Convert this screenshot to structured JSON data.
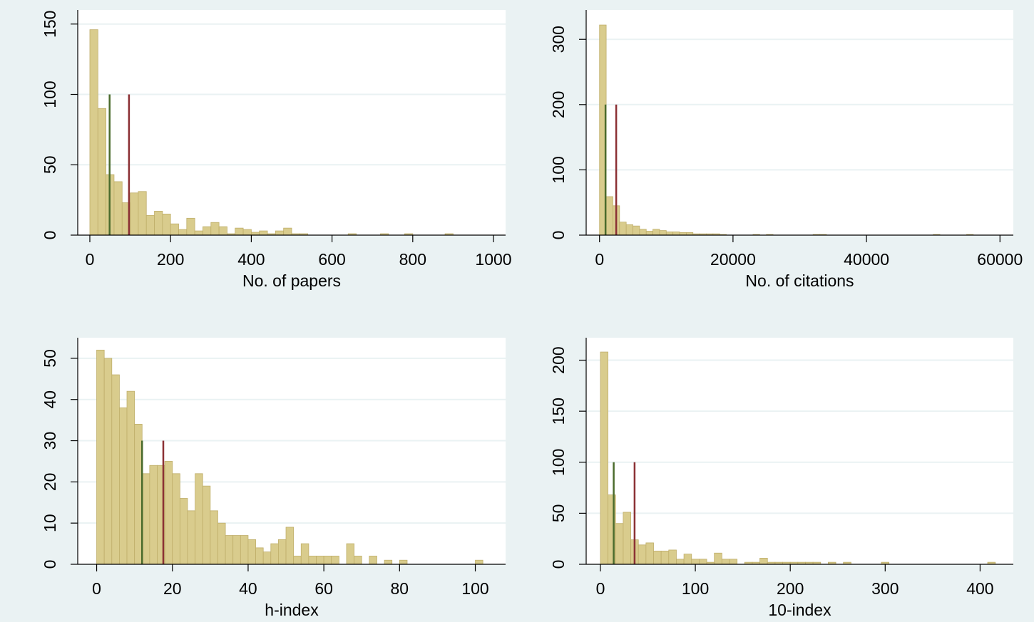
{
  "chart_data": [
    {
      "type": "bar",
      "xlabel": "No. of papers",
      "ylabel": "",
      "xlim": [
        -30,
        1030
      ],
      "ylim": [
        0,
        160
      ],
      "xticks": [
        0,
        200,
        400,
        600,
        800,
        1000
      ],
      "yticks": [
        0,
        50,
        100,
        150
      ],
      "bin_width": 20,
      "bins": [
        {
          "x0": 0,
          "count": 146
        },
        {
          "x0": 20,
          "count": 90
        },
        {
          "x0": 40,
          "count": 43
        },
        {
          "x0": 60,
          "count": 38
        },
        {
          "x0": 80,
          "count": 23
        },
        {
          "x0": 100,
          "count": 30
        },
        {
          "x0": 120,
          "count": 31
        },
        {
          "x0": 140,
          "count": 14
        },
        {
          "x0": 160,
          "count": 17
        },
        {
          "x0": 180,
          "count": 15
        },
        {
          "x0": 200,
          "count": 8
        },
        {
          "x0": 220,
          "count": 4
        },
        {
          "x0": 240,
          "count": 12
        },
        {
          "x0": 260,
          "count": 3
        },
        {
          "x0": 280,
          "count": 6
        },
        {
          "x0": 300,
          "count": 9
        },
        {
          "x0": 320,
          "count": 6
        },
        {
          "x0": 340,
          "count": 1
        },
        {
          "x0": 360,
          "count": 5
        },
        {
          "x0": 380,
          "count": 4
        },
        {
          "x0": 400,
          "count": 2
        },
        {
          "x0": 420,
          "count": 3
        },
        {
          "x0": 440,
          "count": 1
        },
        {
          "x0": 460,
          "count": 3
        },
        {
          "x0": 480,
          "count": 5
        },
        {
          "x0": 500,
          "count": 1
        },
        {
          "x0": 520,
          "count": 1
        },
        {
          "x0": 640,
          "count": 1
        },
        {
          "x0": 720,
          "count": 1
        },
        {
          "x0": 780,
          "count": 1
        },
        {
          "x0": 880,
          "count": 1
        }
      ],
      "reference_lines": [
        {
          "x": 49,
          "height": 100,
          "color": "#4a6b2c"
        },
        {
          "x": 97,
          "height": 100,
          "color": "#8b3034"
        }
      ]
    },
    {
      "type": "bar",
      "xlabel": "No. of citations",
      "ylabel": "",
      "xlim": [
        -2000,
        62000
      ],
      "ylim": [
        0,
        345
      ],
      "xticks": [
        0,
        20000,
        40000,
        60000
      ],
      "yticks": [
        0,
        100,
        200,
        300
      ],
      "bin_width": 1000,
      "bins": [
        {
          "x0": 0,
          "count": 322
        },
        {
          "x0": 1000,
          "count": 59
        },
        {
          "x0": 2000,
          "count": 45
        },
        {
          "x0": 3000,
          "count": 20
        },
        {
          "x0": 4000,
          "count": 16
        },
        {
          "x0": 5000,
          "count": 14
        },
        {
          "x0": 6000,
          "count": 9
        },
        {
          "x0": 7000,
          "count": 6
        },
        {
          "x0": 8000,
          "count": 9
        },
        {
          "x0": 9000,
          "count": 7
        },
        {
          "x0": 10000,
          "count": 5
        },
        {
          "x0": 11000,
          "count": 5
        },
        {
          "x0": 12000,
          "count": 4
        },
        {
          "x0": 13000,
          "count": 4
        },
        {
          "x0": 14000,
          "count": 2
        },
        {
          "x0": 15000,
          "count": 2
        },
        {
          "x0": 16000,
          "count": 2
        },
        {
          "x0": 17000,
          "count": 2
        },
        {
          "x0": 18000,
          "count": 1
        },
        {
          "x0": 23000,
          "count": 1
        },
        {
          "x0": 25000,
          "count": 1
        },
        {
          "x0": 32000,
          "count": 1
        },
        {
          "x0": 33000,
          "count": 1
        },
        {
          "x0": 50000,
          "count": 1
        },
        {
          "x0": 55000,
          "count": 1
        }
      ],
      "reference_lines": [
        {
          "x": 900,
          "height": 200,
          "color": "#4a6b2c"
        },
        {
          "x": 2500,
          "height": 200,
          "color": "#8b3034"
        }
      ]
    },
    {
      "type": "bar",
      "xlabel": "h-index",
      "ylabel": "",
      "xlim": [
        -5,
        108
      ],
      "ylim": [
        0,
        55
      ],
      "xticks": [
        0,
        20,
        40,
        60,
        80,
        100
      ],
      "yticks": [
        0,
        10,
        20,
        30,
        40,
        50
      ],
      "bin_width": 2,
      "bins": [
        {
          "x0": 0,
          "count": 52
        },
        {
          "x0": 2,
          "count": 50
        },
        {
          "x0": 4,
          "count": 46
        },
        {
          "x0": 6,
          "count": 38
        },
        {
          "x0": 8,
          "count": 42
        },
        {
          "x0": 10,
          "count": 34
        },
        {
          "x0": 12,
          "count": 22
        },
        {
          "x0": 14,
          "count": 24
        },
        {
          "x0": 16,
          "count": 24
        },
        {
          "x0": 18,
          "count": 25
        },
        {
          "x0": 20,
          "count": 22
        },
        {
          "x0": 22,
          "count": 16
        },
        {
          "x0": 24,
          "count": 13
        },
        {
          "x0": 26,
          "count": 22
        },
        {
          "x0": 28,
          "count": 19
        },
        {
          "x0": 30,
          "count": 13
        },
        {
          "x0": 32,
          "count": 10
        },
        {
          "x0": 34,
          "count": 7
        },
        {
          "x0": 36,
          "count": 7
        },
        {
          "x0": 38,
          "count": 7
        },
        {
          "x0": 40,
          "count": 6
        },
        {
          "x0": 42,
          "count": 4
        },
        {
          "x0": 44,
          "count": 3
        },
        {
          "x0": 46,
          "count": 5
        },
        {
          "x0": 48,
          "count": 6
        },
        {
          "x0": 50,
          "count": 9
        },
        {
          "x0": 52,
          "count": 2
        },
        {
          "x0": 54,
          "count": 5
        },
        {
          "x0": 56,
          "count": 2
        },
        {
          "x0": 58,
          "count": 2
        },
        {
          "x0": 60,
          "count": 2
        },
        {
          "x0": 62,
          "count": 2
        },
        {
          "x0": 66,
          "count": 5
        },
        {
          "x0": 68,
          "count": 2
        },
        {
          "x0": 72,
          "count": 2
        },
        {
          "x0": 76,
          "count": 1
        },
        {
          "x0": 80,
          "count": 1
        },
        {
          "x0": 100,
          "count": 1
        }
      ],
      "reference_lines": [
        {
          "x": 12,
          "height": 30,
          "color": "#4a6b2c"
        },
        {
          "x": 17.6,
          "height": 30,
          "color": "#8b3034"
        }
      ]
    },
    {
      "type": "bar",
      "xlabel": "10-index",
      "ylabel": "",
      "xlim": [
        -15,
        435
      ],
      "ylim": [
        0,
        222
      ],
      "xticks": [
        0,
        100,
        200,
        300,
        400
      ],
      "yticks": [
        0,
        50,
        100,
        150,
        200
      ],
      "bin_width": 8,
      "bins": [
        {
          "x0": 0,
          "count": 208
        },
        {
          "x0": 8,
          "count": 68
        },
        {
          "x0": 16,
          "count": 40
        },
        {
          "x0": 24,
          "count": 51
        },
        {
          "x0": 32,
          "count": 24
        },
        {
          "x0": 40,
          "count": 19
        },
        {
          "x0": 48,
          "count": 21
        },
        {
          "x0": 56,
          "count": 13
        },
        {
          "x0": 64,
          "count": 13
        },
        {
          "x0": 72,
          "count": 14
        },
        {
          "x0": 80,
          "count": 5
        },
        {
          "x0": 88,
          "count": 10
        },
        {
          "x0": 96,
          "count": 5
        },
        {
          "x0": 104,
          "count": 5
        },
        {
          "x0": 112,
          "count": 2
        },
        {
          "x0": 120,
          "count": 11
        },
        {
          "x0": 128,
          "count": 5
        },
        {
          "x0": 136,
          "count": 5
        },
        {
          "x0": 152,
          "count": 2
        },
        {
          "x0": 160,
          "count": 2
        },
        {
          "x0": 168,
          "count": 6
        },
        {
          "x0": 176,
          "count": 2
        },
        {
          "x0": 184,
          "count": 2
        },
        {
          "x0": 192,
          "count": 2
        },
        {
          "x0": 200,
          "count": 2
        },
        {
          "x0": 208,
          "count": 2
        },
        {
          "x0": 216,
          "count": 2
        },
        {
          "x0": 224,
          "count": 2
        },
        {
          "x0": 240,
          "count": 2
        },
        {
          "x0": 256,
          "count": 2
        },
        {
          "x0": 296,
          "count": 2
        },
        {
          "x0": 408,
          "count": 2
        }
      ],
      "reference_lines": [
        {
          "x": 14,
          "height": 100,
          "color": "#4a6b2c"
        },
        {
          "x": 36,
          "height": 100,
          "color": "#8b3034"
        }
      ]
    }
  ],
  "colors": {
    "background": "#eaf2f3",
    "plot_area": "#ffffff",
    "bar_fill": "#d9cc8d",
    "bar_stroke": "#bfae6a",
    "gridline": "#eaf2f3",
    "axis": "#000000"
  }
}
